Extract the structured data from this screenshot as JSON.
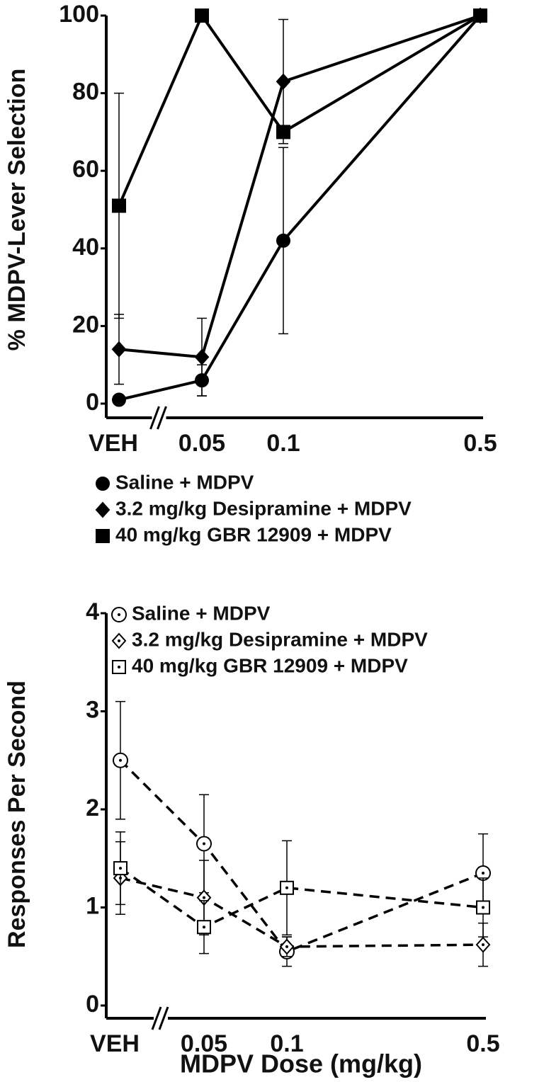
{
  "chart_data": [
    {
      "type": "line",
      "y_label": "% MDPV-Lever Selection",
      "categories": [
        "VEH",
        "0.05",
        "0.1",
        "0.5"
      ],
      "ylim": [
        0,
        100
      ],
      "yticks": [
        0,
        20,
        40,
        60,
        80,
        100
      ],
      "line_style": "solid",
      "filled_markers": true,
      "legend": "below",
      "series": [
        {
          "name": "Saline + MDPV",
          "marker": "circle",
          "color": "#000000",
          "values": [
            1,
            6,
            42,
            100
          ],
          "errors": [
            null,
            4,
            24,
            null
          ]
        },
        {
          "name": "3.2 mg/kg Desipramine + MDPV",
          "marker": "diamond",
          "color": "#000000",
          "values": [
            14,
            12,
            83,
            100
          ],
          "errors": [
            9,
            10,
            16,
            null
          ]
        },
        {
          "name": "40 mg/kg GBR 12909 + MDPV",
          "marker": "square",
          "color": "#000000",
          "values": [
            51,
            100,
            70,
            100
          ],
          "errors": [
            29,
            null,
            null,
            null
          ]
        }
      ]
    },
    {
      "type": "line",
      "y_label": "Responses  Per Second",
      "x_label": "MDPV Dose (mg/kg)",
      "categories": [
        "VEH",
        "0.05",
        "0.1",
        "0.5"
      ],
      "ylim": [
        0,
        4
      ],
      "yticks": [
        0,
        1,
        2,
        3,
        4
      ],
      "line_style": "dashed",
      "filled_markers": false,
      "legend": "upper left",
      "series": [
        {
          "name": "Saline + MDPV",
          "marker": "circle",
          "color": "#000000",
          "values": [
            2.5,
            1.65,
            0.55,
            1.35
          ],
          "errors": [
            0.6,
            0.5,
            0.15,
            0.4
          ]
        },
        {
          "name": "3.2 mg/kg Desipramine +  MDPV",
          "marker": "diamond",
          "color": "#000000",
          "values": [
            1.3,
            1.1,
            0.6,
            0.62
          ],
          "errors": [
            0.37,
            0.38,
            0.1,
            0.22
          ]
        },
        {
          "name": "40 mg/kg GBR 12909 + MDPV",
          "marker": "square",
          "color": "#000000",
          "values": [
            1.4,
            0.8,
            1.2,
            1.0
          ],
          "errors": [
            0.37,
            0.27,
            0.48,
            0.3
          ]
        }
      ]
    }
  ]
}
